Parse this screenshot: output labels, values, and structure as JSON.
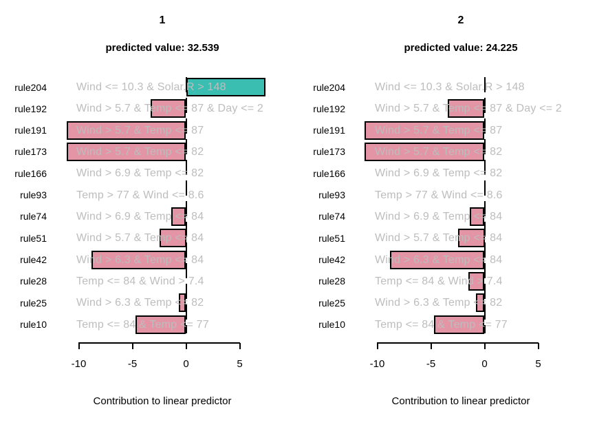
{
  "background": "#ffffff",
  "colors": {
    "positive_bar": "#39BEB1",
    "negative_bar": "#E495A5",
    "bar_border": "#000000",
    "rule_text": "#bdbdbd",
    "label_text": "#000000"
  },
  "rules": [
    {
      "id": "rule204",
      "description": "Wind <= 10.3 & Solar.R > 148"
    },
    {
      "id": "rule192",
      "description": "Wind > 5.7 & Temp <= 87 & Day <= 2"
    },
    {
      "id": "rule191",
      "description": "Wind > 5.7 & Temp <= 87"
    },
    {
      "id": "rule173",
      "description": "Wind > 5.7 & Temp <= 82"
    },
    {
      "id": "rule166",
      "description": "Wind > 6.9 & Temp <= 82"
    },
    {
      "id": "rule93",
      "description": "Temp > 77 & Wind <= 8.6"
    },
    {
      "id": "rule74",
      "description": "Wind > 6.9 & Temp <= 84"
    },
    {
      "id": "rule51",
      "description": "Wind > 5.7 & Temp <= 84"
    },
    {
      "id": "rule42",
      "description": "Wind > 6.3 & Temp <= 84"
    },
    {
      "id": "rule28",
      "description": "Temp <= 84 & Wind > 7.4"
    },
    {
      "id": "rule25",
      "description": "Wind > 6.3 & Temp <= 82"
    },
    {
      "id": "rule10",
      "description": "Temp <= 84 & Temp <= 77"
    }
  ],
  "chart_data": [
    {
      "type": "bar",
      "orientation": "horizontal",
      "title": "1",
      "subtitle": "predicted value: 32.539",
      "categories": [
        "rule204",
        "rule192",
        "rule191",
        "rule173",
        "rule166",
        "rule93",
        "rule74",
        "rule51",
        "rule42",
        "rule28",
        "rule25",
        "rule10"
      ],
      "rule_descriptions": [
        "Wind <= 10.3 & Solar.R > 148",
        "Wind > 5.7 & Temp <= 87 & Day <= 2",
        "Wind > 5.7 & Temp <= 87",
        "Wind > 5.7 & Temp <= 82",
        "Wind > 6.9 & Temp <= 82",
        "Temp > 77 & Wind <= 8.6",
        "Wind > 6.9 & Temp <= 84",
        "Wind > 5.7 & Temp <= 84",
        "Wind > 6.3 & Temp <= 84",
        "Temp <= 84 & Wind > 7.4",
        "Wind > 6.3 & Temp <= 82",
        "Temp <= 84 & Temp <= 77"
      ],
      "values": [
        7.4,
        -3.3,
        -11.1,
        -11.1,
        0,
        0,
        -1.4,
        -2.5,
        -8.8,
        0,
        -0.7,
        -4.7
      ],
      "xlabel": "Contribution to linear predictor",
      "xticks": [
        -10,
        -5,
        0,
        5
      ],
      "xlim": [
        -11.5,
        7.5
      ],
      "grid": false,
      "zero_reference_line": "dashed",
      "positive_color": "#39BEB1",
      "negative_color": "#E495A5"
    },
    {
      "type": "bar",
      "orientation": "horizontal",
      "title": "2",
      "subtitle": "predicted value: 24.225",
      "categories": [
        "rule204",
        "rule192",
        "rule191",
        "rule173",
        "rule166",
        "rule93",
        "rule74",
        "rule51",
        "rule42",
        "rule28",
        "rule25",
        "rule10"
      ],
      "rule_descriptions": [
        "Wind <= 10.3 & Solar.R > 148",
        "Wind > 5.7 & Temp <= 87 & Day <= 2",
        "Wind > 5.7 & Temp <= 87",
        "Wind > 5.7 & Temp <= 82",
        "Wind > 6.9 & Temp <= 82",
        "Temp > 77 & Wind <= 8.6",
        "Wind > 6.9 & Temp <= 84",
        "Wind > 5.7 & Temp <= 84",
        "Wind > 6.3 & Temp <= 84",
        "Temp <= 84 & Wind > 7.4",
        "Wind > 6.3 & Temp <= 82",
        "Temp <= 84 & Temp <= 77"
      ],
      "values": [
        0,
        -3.4,
        -11.2,
        -11.2,
        0,
        0,
        -1.4,
        -2.5,
        -8.8,
        -1.5,
        -0.8,
        -4.7
      ],
      "xlabel": "Contribution to linear predictor",
      "xticks": [
        -10,
        -5,
        0,
        5
      ],
      "xlim": [
        -11.5,
        7.5
      ],
      "grid": false,
      "zero_reference_line": "dashed",
      "positive_color": "#39BEB1",
      "negative_color": "#E495A5"
    }
  ]
}
